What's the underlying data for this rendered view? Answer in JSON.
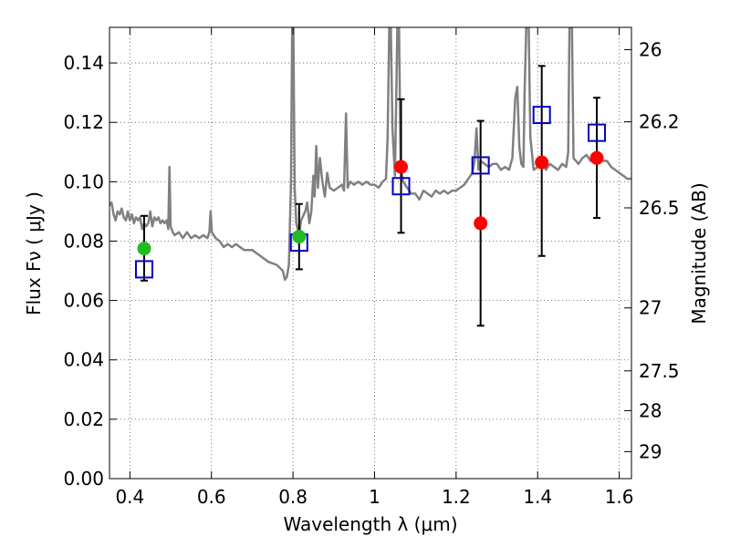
{
  "chart_data": {
    "type": "scatter",
    "xlabel": "Wavelength  λ (μm)",
    "ylabel": "Flux  Fν  ( μJy )",
    "y2label": "Magnitude (AB)",
    "xlim": [
      0.35,
      1.63
    ],
    "ylim": [
      0.0,
      0.152
    ],
    "grid": true,
    "x_ticks": [
      0.4,
      0.6,
      0.8,
      1.0,
      1.2,
      1.4,
      1.6
    ],
    "x_tick_labels": [
      "0.4",
      "0.6",
      "0.8",
      "1",
      "1.2",
      "1.4",
      "1.6"
    ],
    "y_ticks": [
      0.0,
      0.02,
      0.04,
      0.06,
      0.08,
      0.1,
      0.12,
      0.14
    ],
    "y_tick_labels": [
      "0.00",
      "0.02",
      "0.04",
      "0.06",
      "0.08",
      "0.10",
      "0.12",
      "0.14"
    ],
    "y2_ticks": [
      {
        "label": "26",
        "flux": 0.1445
      },
      {
        "label": "26.2",
        "flux": 0.1202
      },
      {
        "label": "26.5",
        "flux": 0.0912
      },
      {
        "label": "27",
        "flux": 0.0575
      },
      {
        "label": "27.5",
        "flux": 0.0363
      },
      {
        "label": "28",
        "flux": 0.0229
      },
      {
        "label": "29",
        "flux": 0.0091
      }
    ],
    "colors": {
      "spectrum": "#808080",
      "model": "#0000cc",
      "detection": "#ff0000",
      "green": "#22bb22",
      "errorbar": "#000000",
      "grid": "#555555"
    },
    "spectrum": {
      "name": "",
      "points": [
        [
          0.35,
          0.092
        ],
        [
          0.355,
          0.093
        ],
        [
          0.36,
          0.089
        ],
        [
          0.365,
          0.087
        ],
        [
          0.37,
          0.09
        ],
        [
          0.375,
          0.089
        ],
        [
          0.38,
          0.091
        ],
        [
          0.385,
          0.088
        ],
        [
          0.39,
          0.087
        ],
        [
          0.395,
          0.09
        ],
        [
          0.4,
          0.087
        ],
        [
          0.405,
          0.089
        ],
        [
          0.41,
          0.086
        ],
        [
          0.415,
          0.088
        ],
        [
          0.42,
          0.087
        ],
        [
          0.425,
          0.088
        ],
        [
          0.43,
          0.084
        ],
        [
          0.435,
          0.086
        ],
        [
          0.44,
          0.085
        ],
        [
          0.445,
          0.086
        ],
        [
          0.45,
          0.09
        ],
        [
          0.455,
          0.085
        ],
        [
          0.46,
          0.088
        ],
        [
          0.465,
          0.087
        ],
        [
          0.47,
          0.088
        ],
        [
          0.475,
          0.086
        ],
        [
          0.48,
          0.087
        ],
        [
          0.485,
          0.086
        ],
        [
          0.49,
          0.087
        ],
        [
          0.494,
          0.084
        ],
        [
          0.497,
          0.105
        ],
        [
          0.5,
          0.085
        ],
        [
          0.505,
          0.083
        ],
        [
          0.51,
          0.082
        ],
        [
          0.52,
          0.083
        ],
        [
          0.53,
          0.081
        ],
        [
          0.54,
          0.083
        ],
        [
          0.55,
          0.081
        ],
        [
          0.56,
          0.082
        ],
        [
          0.57,
          0.081
        ],
        [
          0.58,
          0.082
        ],
        [
          0.59,
          0.081
        ],
        [
          0.595,
          0.083
        ],
        [
          0.598,
          0.09
        ],
        [
          0.601,
          0.083
        ],
        [
          0.61,
          0.081
        ],
        [
          0.62,
          0.08
        ],
        [
          0.63,
          0.078
        ],
        [
          0.64,
          0.079
        ],
        [
          0.65,
          0.078
        ],
        [
          0.66,
          0.079
        ],
        [
          0.67,
          0.078
        ],
        [
          0.68,
          0.077
        ],
        [
          0.7,
          0.077
        ],
        [
          0.72,
          0.075
        ],
        [
          0.74,
          0.073
        ],
        [
          0.76,
          0.072
        ],
        [
          0.775,
          0.07
        ],
        [
          0.78,
          0.067
        ],
        [
          0.785,
          0.068
        ],
        [
          0.79,
          0.072
        ],
        [
          0.795,
          0.1
        ],
        [
          0.798,
          0.152
        ],
        [
          0.801,
          0.152
        ],
        [
          0.804,
          0.098
        ],
        [
          0.808,
          0.086
        ],
        [
          0.815,
          0.082
        ],
        [
          0.82,
          0.087
        ],
        [
          0.83,
          0.09
        ],
        [
          0.835,
          0.093
        ],
        [
          0.84,
          0.086
        ],
        [
          0.845,
          0.09
        ],
        [
          0.85,
          0.102
        ],
        [
          0.853,
          0.095
        ],
        [
          0.857,
          0.112
        ],
        [
          0.861,
          0.098
        ],
        [
          0.866,
          0.108
        ],
        [
          0.872,
          0.1
        ],
        [
          0.878,
          0.095
        ],
        [
          0.884,
          0.103
        ],
        [
          0.89,
          0.098
        ],
        [
          0.9,
          0.097
        ],
        [
          0.91,
          0.098
        ],
        [
          0.92,
          0.099
        ],
        [
          0.925,
          0.097
        ],
        [
          0.93,
          0.123
        ],
        [
          0.934,
          0.098
        ],
        [
          0.94,
          0.1
        ],
        [
          0.95,
          0.099
        ],
        [
          0.96,
          0.1
        ],
        [
          0.97,
          0.099
        ],
        [
          0.98,
          0.1
        ],
        [
          0.99,
          0.099
        ],
        [
          1.0,
          0.099
        ],
        [
          1.01,
          0.098
        ],
        [
          1.02,
          0.1
        ],
        [
          1.028,
          0.101
        ],
        [
          1.032,
          0.115
        ],
        [
          1.036,
          0.152
        ],
        [
          1.04,
          0.152
        ],
        [
          1.044,
          0.118
        ],
        [
          1.05,
          0.102
        ],
        [
          1.056,
          0.152
        ],
        [
          1.06,
          0.152
        ],
        [
          1.064,
          0.105
        ],
        [
          1.07,
          0.1
        ],
        [
          1.08,
          0.098
        ],
        [
          1.09,
          0.096
        ],
        [
          1.1,
          0.096
        ],
        [
          1.11,
          0.094
        ],
        [
          1.12,
          0.097
        ],
        [
          1.13,
          0.096
        ],
        [
          1.14,
          0.095
        ],
        [
          1.15,
          0.097
        ],
        [
          1.16,
          0.096
        ],
        [
          1.17,
          0.097
        ],
        [
          1.18,
          0.096
        ],
        [
          1.19,
          0.097
        ],
        [
          1.2,
          0.097
        ],
        [
          1.21,
          0.098
        ],
        [
          1.22,
          0.099
        ],
        [
          1.23,
          0.101
        ],
        [
          1.24,
          0.103
        ],
        [
          1.245,
          0.107
        ],
        [
          1.25,
          0.118
        ],
        [
          1.255,
          0.104
        ],
        [
          1.26,
          0.107
        ],
        [
          1.27,
          0.106
        ],
        [
          1.28,
          0.105
        ],
        [
          1.29,
          0.106
        ],
        [
          1.3,
          0.106
        ],
        [
          1.31,
          0.104
        ],
        [
          1.32,
          0.105
        ],
        [
          1.33,
          0.104
        ],
        [
          1.338,
          0.108
        ],
        [
          1.345,
          0.128
        ],
        [
          1.35,
          0.132
        ],
        [
          1.355,
          0.112
        ],
        [
          1.36,
          0.106
        ],
        [
          1.365,
          0.105
        ],
        [
          1.368,
          0.13
        ],
        [
          1.372,
          0.152
        ],
        [
          1.378,
          0.152
        ],
        [
          1.382,
          0.115
        ],
        [
          1.39,
          0.104
        ],
        [
          1.4,
          0.105
        ],
        [
          1.41,
          0.105
        ],
        [
          1.415,
          0.108
        ],
        [
          1.42,
          0.104
        ],
        [
          1.43,
          0.106
        ],
        [
          1.44,
          0.105
        ],
        [
          1.45,
          0.104
        ],
        [
          1.46,
          0.106
        ],
        [
          1.47,
          0.105
        ],
        [
          1.475,
          0.11
        ],
        [
          1.478,
          0.152
        ],
        [
          1.484,
          0.152
        ],
        [
          1.488,
          0.108
        ],
        [
          1.5,
          0.106
        ],
        [
          1.51,
          0.108
        ],
        [
          1.52,
          0.109
        ],
        [
          1.53,
          0.107
        ],
        [
          1.54,
          0.108
        ],
        [
          1.55,
          0.108
        ],
        [
          1.56,
          0.107
        ],
        [
          1.57,
          0.107
        ],
        [
          1.58,
          0.105
        ],
        [
          1.59,
          0.104
        ],
        [
          1.6,
          0.103
        ],
        [
          1.61,
          0.102
        ],
        [
          1.62,
          0.101
        ],
        [
          1.63,
          0.101
        ]
      ]
    },
    "model_points": {
      "name": "",
      "marker": "open-square",
      "points": [
        [
          0.435,
          0.0705
        ],
        [
          0.815,
          0.0795
        ],
        [
          1.065,
          0.0985
        ],
        [
          1.26,
          0.1055
        ],
        [
          1.41,
          0.1225
        ],
        [
          1.545,
          0.1165
        ]
      ]
    },
    "observed_points": {
      "name": "",
      "marker": "filled-circle",
      "points": [
        {
          "x": 0.435,
          "y": 0.0775,
          "yerr_low": 0.0667,
          "yerr_high": 0.0885,
          "color": "#22bb22"
        },
        {
          "x": 0.815,
          "y": 0.0815,
          "yerr_low": 0.0705,
          "yerr_high": 0.0925,
          "color": "#22bb22"
        },
        {
          "x": 1.065,
          "y": 0.105,
          "yerr_low": 0.0828,
          "yerr_high": 0.1278,
          "color": "#ff0000"
        },
        {
          "x": 1.26,
          "y": 0.086,
          "yerr_low": 0.0515,
          "yerr_high": 0.1205,
          "color": "#ff0000"
        },
        {
          "x": 1.41,
          "y": 0.1065,
          "yerr_low": 0.075,
          "yerr_high": 0.139,
          "color": "#ff0000"
        },
        {
          "x": 1.545,
          "y": 0.108,
          "yerr_low": 0.0878,
          "yerr_high": 0.1283,
          "color": "#ff0000"
        }
      ]
    }
  }
}
